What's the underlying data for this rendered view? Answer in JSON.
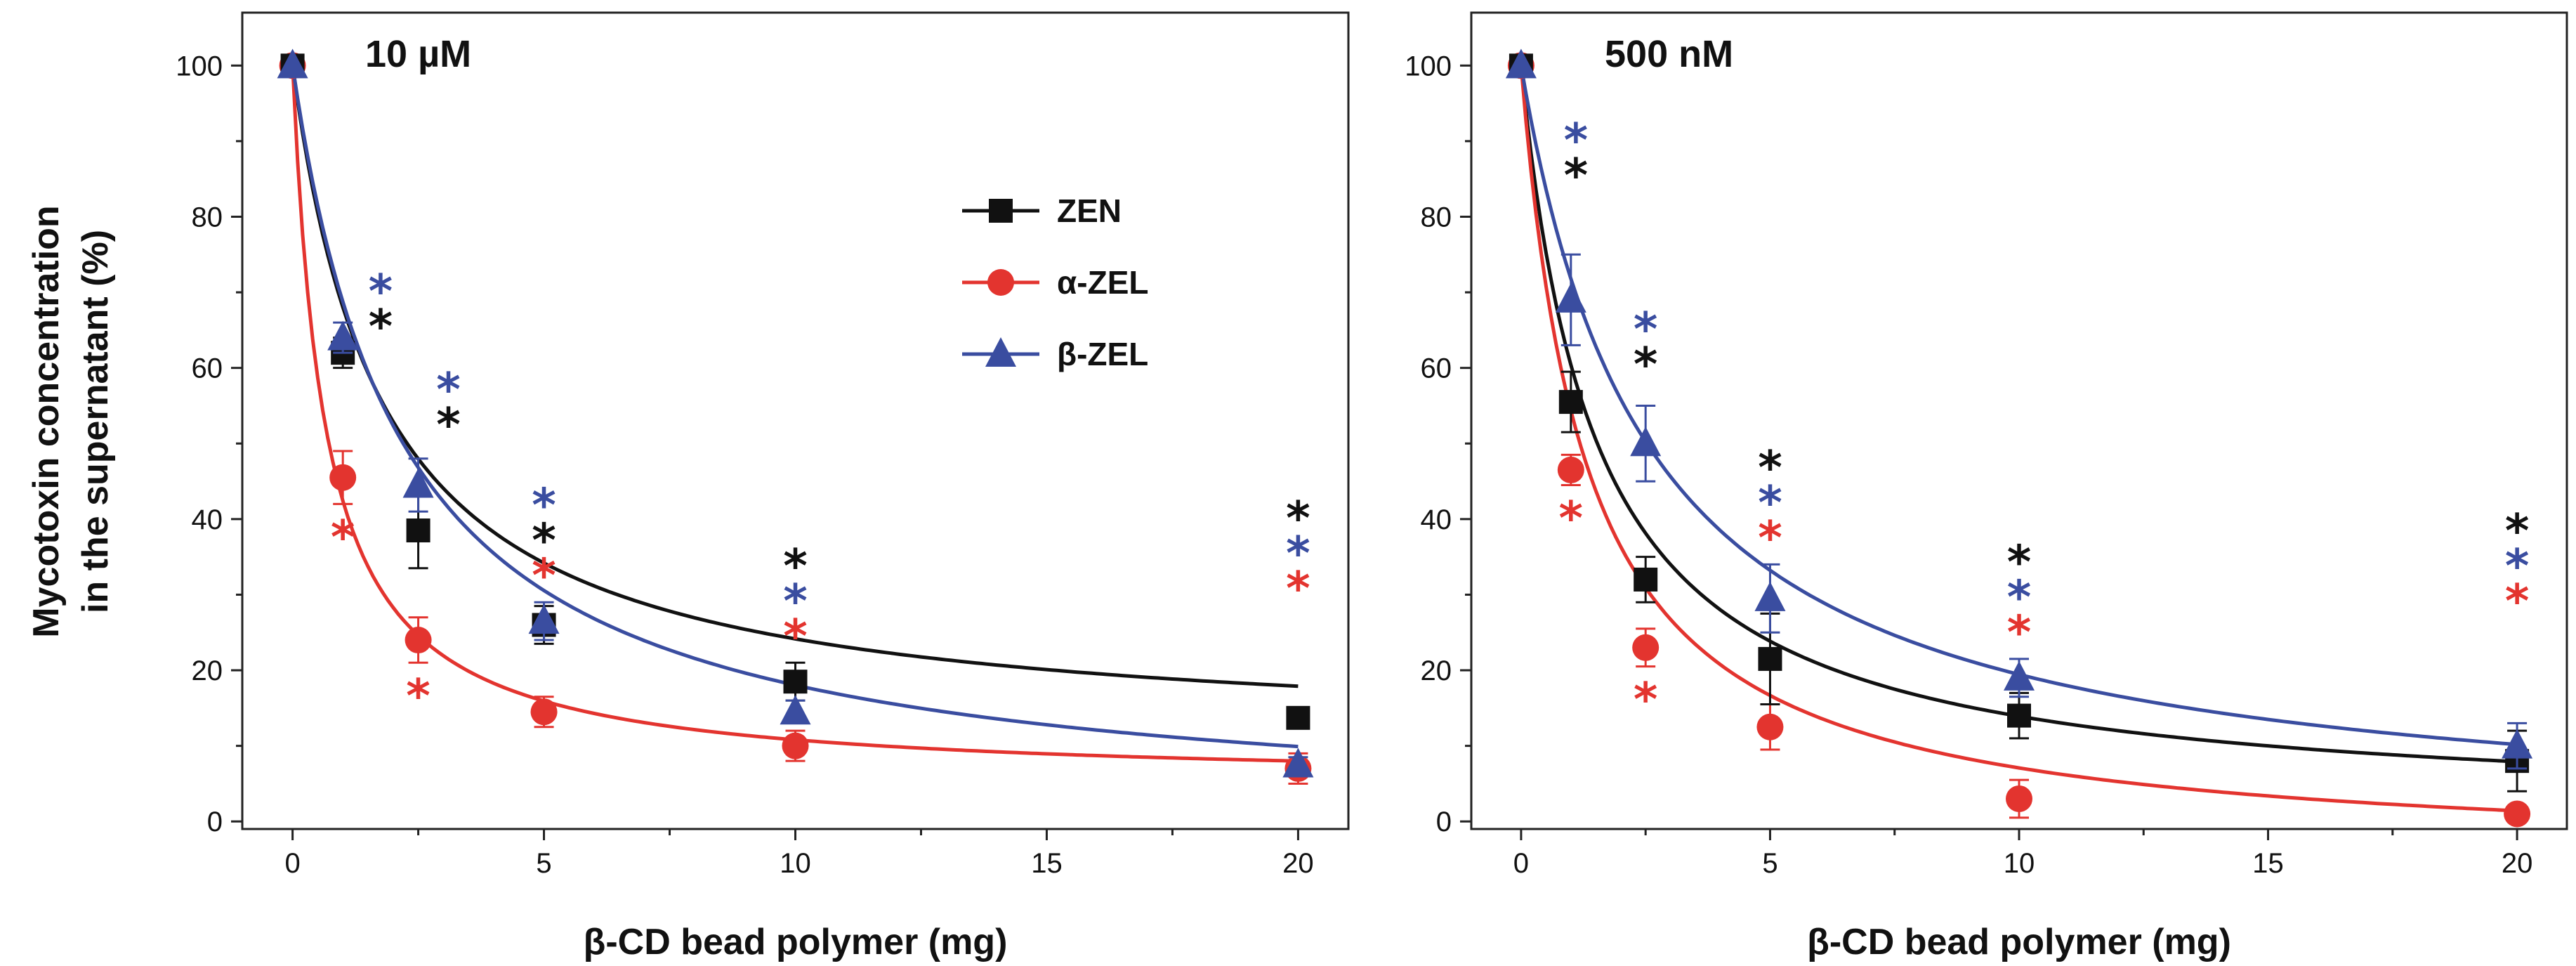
{
  "colors": {
    "ZEN": "#111111",
    "a-ZEL": "#e3342f",
    "b-ZEL": "#3a4da0"
  },
  "chart_data": [
    {
      "type": "scatter",
      "title": "10 µM",
      "xlabel": "β-CD bead polymer (mg)",
      "ylabel": [
        "Mycotoxin concentration",
        "in the supernatant (%)"
      ],
      "xlim": [
        -1,
        21
      ],
      "ylim": [
        -1,
        107
      ],
      "xticks": [
        0,
        5,
        10,
        15,
        20
      ],
      "yticks": [
        0,
        20,
        40,
        60,
        80,
        100
      ],
      "legend": {
        "placement": "center",
        "entries": [
          "ZEN",
          "α-ZEL",
          "β-ZEL"
        ]
      },
      "series": [
        {
          "name": "ZEN",
          "key": "ZEN",
          "marker": "square",
          "x": [
            0,
            1,
            2.5,
            5,
            10,
            20
          ],
          "y": [
            100,
            62,
            38.5,
            26,
            18.5,
            13.7
          ],
          "err": [
            0,
            2,
            5,
            2.5,
            2.5,
            1
          ],
          "fit_k": 1.8,
          "fit_c": 10.5
        },
        {
          "name": "α-ZEL",
          "key": "a-ZEL",
          "marker": "circle",
          "x": [
            0,
            1,
            2.5,
            5,
            10,
            20
          ],
          "y": [
            100,
            45.5,
            24,
            14.5,
            10,
            7
          ],
          "err": [
            0,
            3.5,
            3,
            2,
            2,
            2
          ],
          "fit_k": 0.65,
          "fit_c": 5.0
        },
        {
          "name": "β-ZEL",
          "key": "b-ZEL",
          "marker": "triangle",
          "x": [
            0,
            1,
            2.5,
            5,
            10,
            20
          ],
          "y": [
            100,
            64,
            44.5,
            26.5,
            14.5,
            7.5
          ],
          "err": [
            0,
            2,
            3.5,
            2.5,
            1.5,
            1
          ],
          "fit_k": 2.2,
          "fit_c": 0.0
        }
      ],
      "significance": [
        {
          "x": 1.75,
          "labels": [
            "b-ZEL",
            "ZEN"
          ],
          "text": "*"
        },
        {
          "x": 3.1,
          "labels": [
            "b-ZEL",
            "ZEN"
          ],
          "text": "*"
        },
        {
          "x": 1.0,
          "labels": [
            "a-ZEL"
          ],
          "text": "*"
        },
        {
          "x": 2.5,
          "labels": [
            "a-ZEL"
          ],
          "text": "*"
        },
        {
          "x": 5,
          "labels": [
            "b-ZEL",
            "ZEN",
            "a-ZEL"
          ],
          "text": "*"
        },
        {
          "x": 10,
          "labels": [
            "ZEN",
            "b-ZEL",
            "a-ZEL"
          ],
          "text": "*"
        },
        {
          "x": 20,
          "labels": [
            "ZEN",
            "b-ZEL",
            "a-ZEL"
          ],
          "text": "*"
        }
      ]
    },
    {
      "type": "scatter",
      "title": "500 nM",
      "xlabel": "β-CD bead polymer (mg)",
      "ylabel": [],
      "xlim": [
        -1,
        21
      ],
      "ylim": [
        -1,
        107
      ],
      "xticks": [
        0,
        5,
        10,
        15,
        20
      ],
      "yticks": [
        0,
        20,
        40,
        60,
        80,
        100
      ],
      "legend": null,
      "series": [
        {
          "name": "ZEN",
          "key": "ZEN",
          "marker": "square",
          "x": [
            0,
            1,
            2.5,
            5,
            10,
            20
          ],
          "y": [
            100,
            55.5,
            32,
            21.5,
            14,
            8
          ],
          "err": [
            0,
            4,
            3,
            6,
            3,
            4
          ],
          "fit_k": 1.5,
          "fit_c": 1.0
        },
        {
          "name": "α-ZEL",
          "key": "a-ZEL",
          "marker": "circle",
          "x": [
            0,
            1,
            2.5,
            5,
            10,
            20
          ],
          "y": [
            100,
            46.5,
            23,
            12.5,
            3,
            1
          ],
          "err": [
            0,
            2,
            2.5,
            3,
            2.5,
            1
          ],
          "fit_k": 1.3,
          "fit_c": -5.0
        },
        {
          "name": "β-ZEL",
          "key": "b-ZEL",
          "marker": "triangle",
          "x": [
            0,
            1,
            2.5,
            5,
            10,
            20
          ],
          "y": [
            100,
            69,
            50,
            29.5,
            19,
            10
          ],
          "err": [
            0,
            6,
            5,
            4.5,
            2.5,
            3
          ],
          "fit_k": 2.6,
          "fit_c": -1.5
        }
      ],
      "significance": [
        {
          "x": 1.1,
          "labels": [
            "b-ZEL",
            "ZEN"
          ],
          "text": "*"
        },
        {
          "x": 1.0,
          "labels": [
            "a-ZEL"
          ],
          "text": "*"
        },
        {
          "x": 2.5,
          "labels": [
            "b-ZEL",
            "ZEN"
          ],
          "text": "*"
        },
        {
          "x": 2.5,
          "labels": [
            "a-ZEL"
          ],
          "text": "*"
        },
        {
          "x": 5,
          "labels": [
            "ZEN",
            "b-ZEL",
            "a-ZEL"
          ],
          "text": "*"
        },
        {
          "x": 10,
          "labels": [
            "ZEN",
            "b-ZEL",
            "a-ZEL"
          ],
          "text": "*"
        },
        {
          "x": 20,
          "labels": [
            "ZEN",
            "b-ZEL",
            "a-ZEL"
          ],
          "text": "*"
        }
      ]
    }
  ]
}
